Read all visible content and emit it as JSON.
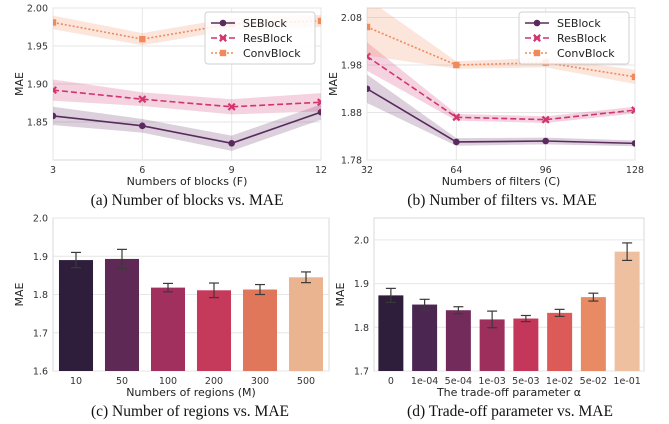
{
  "chart_data": [
    {
      "type": "line",
      "caption": "(a) Number of blocks vs. MAE",
      "xlabel": "Numbers of blocks (F)",
      "ylabel": "MAE",
      "x": [
        3,
        6,
        9,
        12
      ],
      "xticks": [
        "3",
        "6",
        "9",
        "12"
      ],
      "ylim": [
        1.8,
        2.0
      ],
      "yticks": [
        "1.85",
        "1.90",
        "1.95",
        "2.00"
      ],
      "grid": true,
      "legend": "top-right",
      "series": [
        {
          "name": "SEBlock",
          "values": [
            1.858,
            1.845,
            1.822,
            1.863
          ],
          "band": [
            0.012,
            0.009,
            0.01,
            0.01
          ],
          "color": "#5a2a5e",
          "marker": "circle",
          "dash": "solid"
        },
        {
          "name": "ResBlock",
          "values": [
            1.892,
            1.88,
            1.87,
            1.876
          ],
          "band": [
            0.014,
            0.009,
            0.01,
            0.012
          ],
          "color": "#d1346e",
          "marker": "x",
          "dash": "dashed"
        },
        {
          "name": "ConvBlock",
          "values": [
            1.981,
            1.959,
            1.979,
            1.983
          ],
          "band": [
            0.009,
            0.008,
            0.008,
            0.008
          ],
          "color": "#f08a5d",
          "marker": "square",
          "dash": "dotted"
        }
      ]
    },
    {
      "type": "line",
      "caption": "(b) Number of filters vs. MAE",
      "xlabel": "Numbers of filters (C)",
      "ylabel": "MAE",
      "x": [
        32,
        64,
        96,
        128
      ],
      "xticks": [
        "32",
        "64",
        "96",
        "128"
      ],
      "ylim": [
        1.78,
        2.1
      ],
      "yticks": [
        "1.78",
        "1.88",
        "1.98",
        "2.08"
      ],
      "grid": true,
      "legend": "top-right",
      "series": [
        {
          "name": "SEBlock",
          "values": [
            1.93,
            1.818,
            1.82,
            1.815
          ],
          "band": [
            0.03,
            0.008,
            0.007,
            0.006
          ],
          "color": "#5a2a5e",
          "marker": "circle",
          "dash": "solid"
        },
        {
          "name": "ResBlock",
          "values": [
            1.998,
            1.87,
            1.865,
            1.885
          ],
          "band": [
            0.03,
            0.007,
            0.007,
            0.007
          ],
          "color": "#d1346e",
          "marker": "x",
          "dash": "dashed"
        },
        {
          "name": "ConvBlock",
          "values": [
            2.06,
            1.98,
            1.985,
            1.955
          ],
          "band": [
            0.06,
            0.008,
            0.01,
            0.015
          ],
          "color": "#f08a5d",
          "marker": "square",
          "dash": "dotted"
        }
      ]
    },
    {
      "type": "bar",
      "caption": "(c) Number of regions vs. MAE",
      "xlabel": "Numbers of regions (M)",
      "ylabel": "MAE",
      "categories": [
        "10",
        "50",
        "100",
        "200",
        "300",
        "500"
      ],
      "values": [
        1.89,
        1.893,
        1.818,
        1.811,
        1.813,
        1.845
      ],
      "errors": [
        0.02,
        0.025,
        0.011,
        0.019,
        0.013,
        0.014
      ],
      "colors": [
        "#2e1e3b",
        "#5e2a55",
        "#a1305e",
        "#c5395a",
        "#e0775a",
        "#ebb491"
      ],
      "ylim": [
        1.6,
        2.0
      ],
      "yticks": [
        "1.6",
        "1.7",
        "1.8",
        "1.9",
        "2.0"
      ],
      "grid": true
    },
    {
      "type": "bar",
      "caption": "(d) Trade-off parameter vs. MAE",
      "xlabel": "The trade-off parameter α",
      "ylabel": "MAE",
      "categories": [
        "0",
        "1e-04",
        "5e-04",
        "1e-03",
        "5e-03",
        "1e-02",
        "5e-02",
        "1e-01"
      ],
      "values": [
        1.873,
        1.852,
        1.839,
        1.818,
        1.82,
        1.833,
        1.869,
        1.973
      ],
      "errors": [
        0.016,
        0.012,
        0.008,
        0.019,
        0.007,
        0.008,
        0.009,
        0.02
      ],
      "colors": [
        "#2e1e3b",
        "#4a2651",
        "#722b5a",
        "#9c2f5c",
        "#c4375a",
        "#dc5b58",
        "#e88a63",
        "#eec0a0"
      ],
      "ylim": [
        1.7,
        2.05
      ],
      "yticks": [
        "1.7",
        "1.8",
        "1.9",
        "2.0"
      ],
      "grid": true
    }
  ]
}
